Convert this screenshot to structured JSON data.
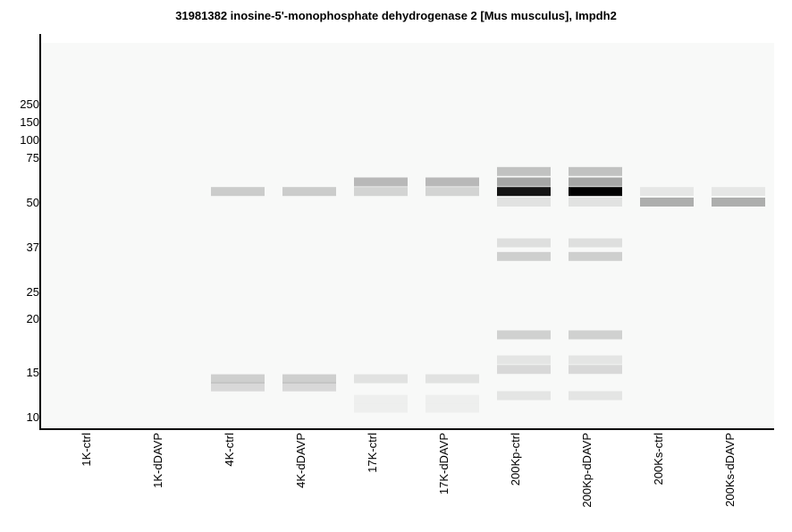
{
  "chart_data": {
    "type": "gel",
    "title": "31981382 inosine-5'-monophosphate dehydrogenase 2 [Mus musculus], Impdh2",
    "colors": {
      "background": "#f8f9f8",
      "axis": "#000000",
      "band": "#000000"
    },
    "y_ticks": [
      "250",
      "150",
      "100",
      "75",
      "50",
      "37",
      "25",
      "20",
      "15",
      "10"
    ],
    "lanes": [
      "1K-ctrl",
      "1K-dDAVP",
      "4K-ctrl",
      "4K-dDAVP",
      "17K-ctrl",
      "17K-dDAVP",
      "200Kp-ctrl",
      "200Kp-dDAVP",
      "200Ks-ctrl",
      "200Ks-dDAVP"
    ],
    "bands": [
      {
        "lane": 2,
        "mw": 55,
        "intensity": 0.18
      },
      {
        "lane": 2,
        "mw": 14.1,
        "intensity": 0.17
      },
      {
        "lane": 2,
        "mw": 13.1,
        "intensity": 0.13
      },
      {
        "lane": 3,
        "mw": 55,
        "intensity": 0.18
      },
      {
        "lane": 3,
        "mw": 14.1,
        "intensity": 0.17
      },
      {
        "lane": 3,
        "mw": 13.1,
        "intensity": 0.13
      },
      {
        "lane": 4,
        "mw": 60,
        "intensity": 0.26
      },
      {
        "lane": 4,
        "mw": 55,
        "intensity": 0.15
      },
      {
        "lane": 4,
        "mw": 14.1,
        "intensity": 0.09
      },
      {
        "lane": 4,
        "mw": 11.7,
        "intensity": 0.04
      },
      {
        "lane": 4,
        "mw": 10.8,
        "intensity": 0.04
      },
      {
        "lane": 5,
        "mw": 60,
        "intensity": 0.26
      },
      {
        "lane": 5,
        "mw": 55,
        "intensity": 0.15
      },
      {
        "lane": 5,
        "mw": 14.1,
        "intensity": 0.09
      },
      {
        "lane": 5,
        "mw": 11.7,
        "intensity": 0.04
      },
      {
        "lane": 5,
        "mw": 10.8,
        "intensity": 0.04
      },
      {
        "lane": 6,
        "mw": 66,
        "intensity": 0.22
      },
      {
        "lane": 6,
        "mw": 60,
        "intensity": 0.33
      },
      {
        "lane": 6,
        "mw": 55,
        "intensity": 0.92
      },
      {
        "lane": 6,
        "mw": 50,
        "intensity": 0.09
      },
      {
        "lane": 6,
        "mw": 38,
        "intensity": 0.1
      },
      {
        "lane": 6,
        "mw": 34,
        "intensity": 0.17
      },
      {
        "lane": 6,
        "mw": 18.3,
        "intensity": 0.16
      },
      {
        "lane": 6,
        "mw": 16,
        "intensity": 0.08
      },
      {
        "lane": 6,
        "mw": 15.2,
        "intensity": 0.13
      },
      {
        "lane": 6,
        "mw": 12.1,
        "intensity": 0.08
      },
      {
        "lane": 7,
        "mw": 66,
        "intensity": 0.22
      },
      {
        "lane": 7,
        "mw": 60,
        "intensity": 0.33
      },
      {
        "lane": 7,
        "mw": 55,
        "intensity": 1.0
      },
      {
        "lane": 7,
        "mw": 50,
        "intensity": 0.09
      },
      {
        "lane": 7,
        "mw": 38,
        "intensity": 0.1
      },
      {
        "lane": 7,
        "mw": 34,
        "intensity": 0.17
      },
      {
        "lane": 7,
        "mw": 18.3,
        "intensity": 0.16
      },
      {
        "lane": 7,
        "mw": 16,
        "intensity": 0.08
      },
      {
        "lane": 7,
        "mw": 15.2,
        "intensity": 0.13
      },
      {
        "lane": 7,
        "mw": 12.1,
        "intensity": 0.08
      },
      {
        "lane": 8,
        "mw": 55,
        "intensity": 0.07
      },
      {
        "lane": 8,
        "mw": 50,
        "intensity": 0.3
      },
      {
        "lane": 9,
        "mw": 55,
        "intensity": 0.07
      },
      {
        "lane": 9,
        "mw": 50,
        "intensity": 0.3
      }
    ]
  }
}
